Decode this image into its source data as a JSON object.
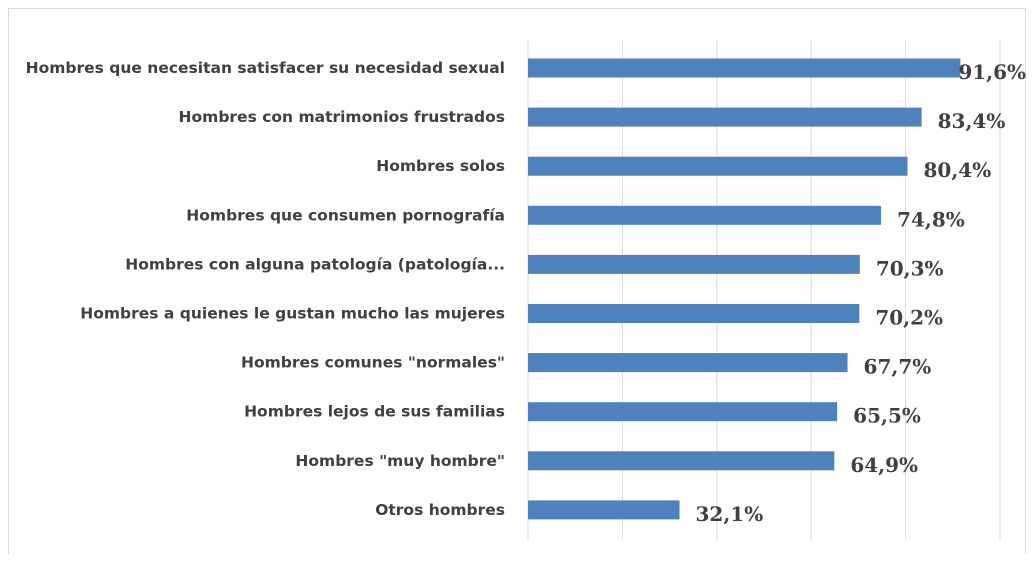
{
  "chart_data": {
    "type": "bar",
    "orientation": "horizontal",
    "categories": [
      "Hombres que necesitan satisfacer su necesidad sexual",
      "Hombres con matrimonios frustrados",
      "Hombres solos",
      "Hombres que consumen pornografía",
      "Hombres con alguna patología (patología...",
      "Hombres a quienes le gustan mucho las mujeres",
      "Hombres comunes \"normales\"",
      "Hombres lejos de sus familias",
      "Hombres \"muy hombre\"",
      "Otros hombres"
    ],
    "values": [
      91.6,
      83.4,
      80.4,
      74.8,
      70.3,
      70.2,
      67.7,
      65.5,
      64.9,
      32.1
    ],
    "value_labels": [
      "91,6%",
      "83,4%",
      "80,4%",
      "74,8%",
      "70,3%",
      "70,2%",
      "67,7%",
      "65,5%",
      "64,9%",
      "32,1%"
    ],
    "xlim": [
      0,
      100
    ],
    "grid": true,
    "legend": "none",
    "bar_color": "#4f81bd"
  }
}
